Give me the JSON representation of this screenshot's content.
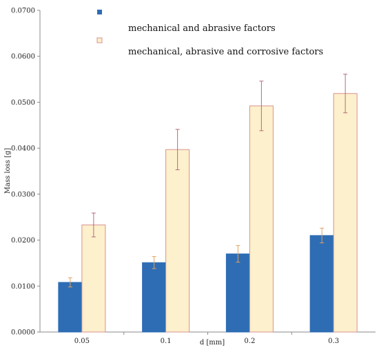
{
  "chart_data": {
    "type": "bar",
    "categories": [
      "0.05",
      "0.1",
      "0.2",
      "0.3"
    ],
    "xlabel": "d [mm]",
    "ylabel": "Mass loss [g]",
    "ylim": [
      0,
      0.07
    ],
    "yticks": [
      "0.0000",
      "0.0100",
      "0.0200",
      "0.0300",
      "0.0400",
      "0.0500",
      "0.0600",
      "0.0700"
    ],
    "grid": false,
    "legend_position": "top-center",
    "series": [
      {
        "name": "mechanical and abrasive factors",
        "values": [
          0.0108,
          0.0151,
          0.017,
          0.021
        ],
        "errors": [
          0.001,
          0.0013,
          0.0018,
          0.0016
        ],
        "color": "#2e6db4",
        "edge_color": "#2e6db4",
        "error_color": "#e0a060"
      },
      {
        "name": "mechanical, abrasive and corrosive factors",
        "values": [
          0.0233,
          0.0397,
          0.0492,
          0.0519
        ],
        "errors": [
          0.0026,
          0.0044,
          0.0054,
          0.0042
        ],
        "color": "#fdf0cc",
        "edge_color": "#d89090",
        "error_color": "#b46a7a"
      }
    ]
  }
}
